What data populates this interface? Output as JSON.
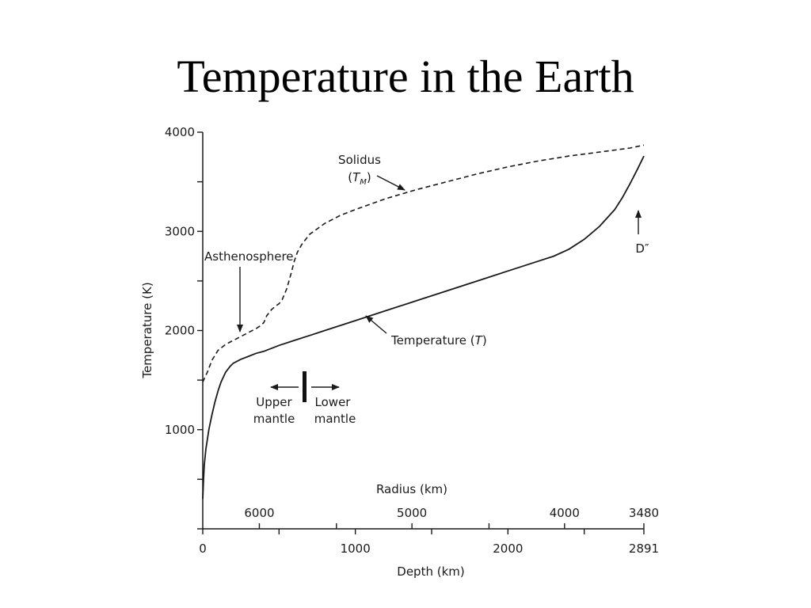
{
  "slide": {
    "title": "Temperature in the Earth"
  },
  "chart_data": {
    "type": "line",
    "xlabel": "Depth (km)",
    "ylabel": "Temperature (K)",
    "xlim": [
      0,
      2891
    ],
    "ylim": [
      0,
      4000
    ],
    "x_ticks": [
      {
        "value": 0,
        "label": "0"
      },
      {
        "value": 500,
        "label": ""
      },
      {
        "value": 1000,
        "label": "1000"
      },
      {
        "value": 1500,
        "label": ""
      },
      {
        "value": 2000,
        "label": "2000"
      },
      {
        "value": 2500,
        "label": ""
      },
      {
        "value": 2891,
        "label": "2891"
      }
    ],
    "y_ticks": [
      {
        "value": 0,
        "label": ""
      },
      {
        "value": 500,
        "label": ""
      },
      {
        "value": 1000,
        "label": "1000"
      },
      {
        "value": 1500,
        "label": ""
      },
      {
        "value": 2000,
        "label": "2000"
      },
      {
        "value": 2500,
        "label": ""
      },
      {
        "value": 3000,
        "label": "3000"
      },
      {
        "value": 3500,
        "label": ""
      },
      {
        "value": 4000,
        "label": "4000"
      }
    ],
    "secondary_axis": {
      "label": "Radius (km)",
      "ticks": [
        {
          "depth": 371,
          "label": "6000"
        },
        {
          "depth": 876,
          "label": ""
        },
        {
          "depth": 1371,
          "label": "5000"
        },
        {
          "depth": 1876,
          "label": ""
        },
        {
          "depth": 2371,
          "label": "4000"
        },
        {
          "depth": 2891,
          "label": "3480"
        }
      ]
    },
    "series": [
      {
        "name": "Solidus",
        "sub": "M",
        "style": "dashed",
        "x": [
          0,
          30,
          60,
          100,
          150,
          200,
          250,
          300,
          350,
          380,
          400,
          420,
          450,
          480,
          500,
          520,
          550,
          580,
          600,
          620,
          650,
          700,
          800,
          900,
          1000,
          1200,
          1400,
          1600,
          1800,
          2000,
          2200,
          2400,
          2600,
          2800,
          2891
        ],
        "y": [
          1480,
          1580,
          1700,
          1800,
          1860,
          1900,
          1940,
          1980,
          2020,
          2050,
          2080,
          2150,
          2210,
          2250,
          2270,
          2310,
          2420,
          2580,
          2700,
          2790,
          2870,
          2970,
          3080,
          3160,
          3220,
          3330,
          3420,
          3500,
          3580,
          3650,
          3710,
          3760,
          3800,
          3840,
          3870
        ]
      },
      {
        "name": "Temperature",
        "sub": "",
        "style": "solid",
        "x": [
          0,
          5,
          10,
          20,
          40,
          60,
          80,
          100,
          120,
          150,
          180,
          200,
          250,
          300,
          350,
          400,
          500,
          600,
          700,
          800,
          1000,
          1200,
          1400,
          1600,
          1800,
          2000,
          2200,
          2300,
          2400,
          2500,
          2600,
          2700,
          2750,
          2800,
          2850,
          2891
        ],
        "y": [
          300,
          500,
          640,
          800,
          1000,
          1150,
          1280,
          1390,
          1480,
          1580,
          1640,
          1670,
          1710,
          1740,
          1770,
          1790,
          1850,
          1900,
          1950,
          2000,
          2100,
          2200,
          2300,
          2400,
          2500,
          2600,
          2700,
          2750,
          2820,
          2920,
          3050,
          3220,
          3340,
          3480,
          3630,
          3760
        ]
      }
    ],
    "annotations": {
      "solidus_line1": "Solidus",
      "solidus_open": "(",
      "solidus_symbol": "T",
      "solidus_sub": "M",
      "solidus_close": ")",
      "asthenosphere": "Asthenosphere",
      "temperature_label": "Temperature (",
      "temperature_symbol": "T",
      "temperature_close": ")",
      "d_double_prime": "D″",
      "upper_mantle_1": "Upper",
      "upper_mantle_2": "mantle",
      "lower_mantle_1": "Lower",
      "lower_mantle_2": "mantle"
    }
  }
}
